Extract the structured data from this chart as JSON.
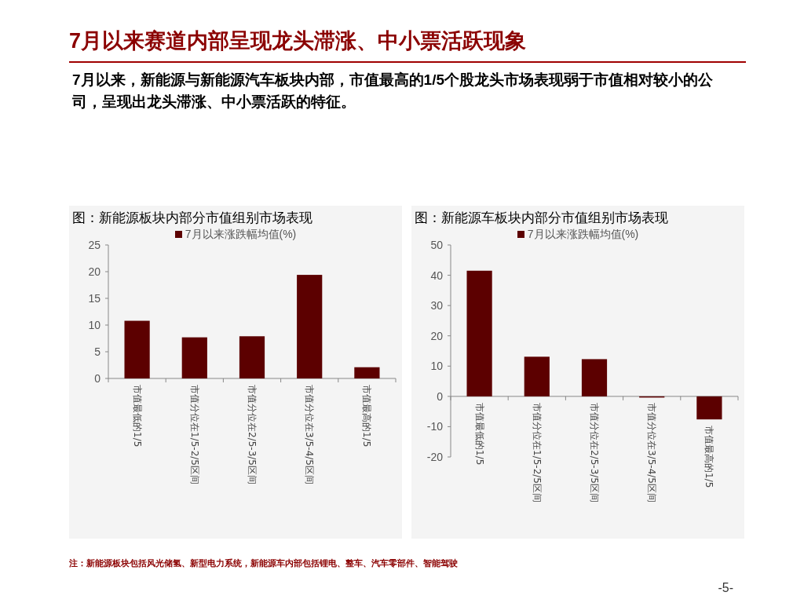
{
  "chart_data": [
    {
      "type": "other",
      "title": "7月以来赛道内部呈现龙头滞涨、中小票活跃现象",
      "subtitle": "7月以来，新能源与新能源汽车板块内部，市值最高的1/5个股龙头市场表现弱于市值相对较小的公司，呈现出龙头滞涨、中小票活跃的特征。",
      "annotations": [
        "注：新能源板块包括风光储氢、新型电力系统，新能源车内部包括锂电、整车、汽车零部件、智能驾驶",
        "-5-"
      ]
    },
    {
      "type": "bar",
      "title": "图：新能源板块内部分市值组别市场表现",
      "categories": [
        "市值最低的1/5",
        "市值分位在1/5-2/5区间",
        "市值分位在2/5-3/5区间",
        "市值分位在3/5-4/5区间",
        "市值最高的1/5"
      ],
      "series": [
        {
          "name": "7月以来涨跌幅均值(%)",
          "color": "#5c0000",
          "values": [
            10.8,
            7.7,
            7.9,
            19.4,
            2.1
          ]
        }
      ],
      "ylim": [
        0,
        25
      ],
      "yticks": [
        0,
        5,
        10,
        15,
        20,
        25
      ],
      "grid": false,
      "legend": "top"
    },
    {
      "type": "bar",
      "title": "图：新能源车板块内部分市值组别市场表现",
      "categories": [
        "市值最低的1/5",
        "市值分位在1/5-2/5区间",
        "市值分位在2/5-3/5区间",
        "市值分位在3/5-4/5区间",
        "市值最高的1/5"
      ],
      "series": [
        {
          "name": "7月以来涨跌幅均值(%)",
          "color": "#5c0000",
          "values": [
            41.5,
            13.1,
            12.3,
            -0.1,
            -7.6
          ]
        }
      ],
      "ylim": [
        -20,
        50
      ],
      "yticks": [
        -20,
        -10,
        0,
        10,
        20,
        30,
        40,
        50
      ],
      "grid": false,
      "legend": "top"
    }
  ]
}
